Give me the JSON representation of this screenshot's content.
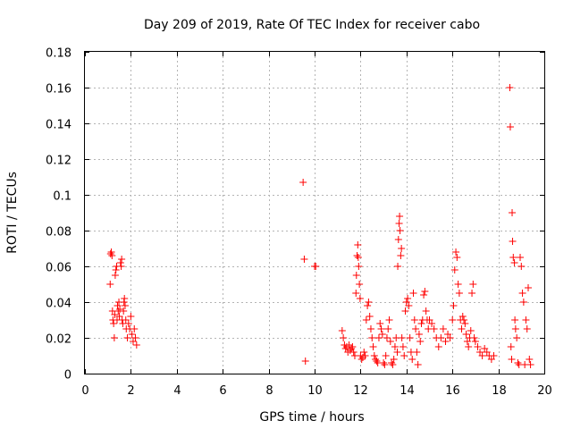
{
  "chart_data": {
    "type": "scatter",
    "title": "Day 209 of 2019, Rate Of TEC Index for receiver cabo",
    "xlabel": "GPS time / hours",
    "ylabel": "ROTI / TECUs",
    "xlim": [
      0,
      20
    ],
    "ylim": [
      0,
      0.18
    ],
    "xticks": [
      0,
      2,
      4,
      6,
      8,
      10,
      12,
      14,
      16,
      18,
      20
    ],
    "yticks": [
      0,
      0.02,
      0.04,
      0.06,
      0.08,
      0.1,
      0.12,
      0.14,
      0.16,
      0.18
    ],
    "xtick_labels": [
      "0",
      "2",
      "4",
      "6",
      "8",
      "10",
      "12",
      "14",
      "16",
      "18",
      "20"
    ],
    "ytick_labels": [
      "0",
      "0.02",
      "0.04",
      "0.06",
      "0.08",
      "0.1",
      "0.12",
      "0.14",
      "0.16",
      "0.18"
    ],
    "grid": true,
    "marker": "+",
    "series": [
      {
        "name": "ROTI",
        "color": "#ff0000",
        "points": [
          [
            1.1,
            0.05
          ],
          [
            1.12,
            0.067
          ],
          [
            1.15,
            0.068
          ],
          [
            1.18,
            0.066
          ],
          [
            1.2,
            0.035
          ],
          [
            1.22,
            0.03
          ],
          [
            1.25,
            0.028
          ],
          [
            1.28,
            0.02
          ],
          [
            1.3,
            0.033
          ],
          [
            1.32,
            0.055
          ],
          [
            1.35,
            0.058
          ],
          [
            1.38,
            0.06
          ],
          [
            1.4,
            0.03
          ],
          [
            1.42,
            0.038
          ],
          [
            1.45,
            0.035
          ],
          [
            1.48,
            0.04
          ],
          [
            1.5,
            0.032
          ],
          [
            1.52,
            0.036
          ],
          [
            1.55,
            0.062
          ],
          [
            1.58,
            0.06
          ],
          [
            1.6,
            0.064
          ],
          [
            1.62,
            0.03
          ],
          [
            1.65,
            0.028
          ],
          [
            1.68,
            0.035
          ],
          [
            1.7,
            0.04
          ],
          [
            1.72,
            0.042
          ],
          [
            1.75,
            0.038
          ],
          [
            1.78,
            0.03
          ],
          [
            1.8,
            0.025
          ],
          [
            1.85,
            0.02
          ],
          [
            1.9,
            0.028
          ],
          [
            1.95,
            0.025
          ],
          [
            2.0,
            0.032
          ],
          [
            2.05,
            0.022
          ],
          [
            2.1,
            0.018
          ],
          [
            2.15,
            0.025
          ],
          [
            2.2,
            0.02
          ],
          [
            2.25,
            0.016
          ],
          [
            9.5,
            0.107
          ],
          [
            9.55,
            0.064
          ],
          [
            9.6,
            0.007
          ],
          [
            10.0,
            0.06
          ],
          [
            10.05,
            0.06
          ],
          [
            11.2,
            0.024
          ],
          [
            11.25,
            0.02
          ],
          [
            11.3,
            0.016
          ],
          [
            11.35,
            0.014
          ],
          [
            11.4,
            0.015
          ],
          [
            11.45,
            0.012
          ],
          [
            11.5,
            0.016
          ],
          [
            11.55,
            0.013
          ],
          [
            11.6,
            0.014
          ],
          [
            11.65,
            0.015
          ],
          [
            11.7,
            0.012
          ],
          [
            11.75,
            0.01
          ],
          [
            11.8,
            0.045
          ],
          [
            11.82,
            0.055
          ],
          [
            11.85,
            0.066
          ],
          [
            11.88,
            0.072
          ],
          [
            11.9,
            0.065
          ],
          [
            11.92,
            0.06
          ],
          [
            11.95,
            0.05
          ],
          [
            11.98,
            0.042
          ],
          [
            12.0,
            0.01
          ],
          [
            12.05,
            0.008
          ],
          [
            12.1,
            0.009
          ],
          [
            12.15,
            0.012
          ],
          [
            12.2,
            0.01
          ],
          [
            12.25,
            0.03
          ],
          [
            12.3,
            0.038
          ],
          [
            12.35,
            0.04
          ],
          [
            12.4,
            0.032
          ],
          [
            12.45,
            0.025
          ],
          [
            12.5,
            0.02
          ],
          [
            12.55,
            0.015
          ],
          [
            12.6,
            0.01
          ],
          [
            12.65,
            0.008
          ],
          [
            12.7,
            0.007
          ],
          [
            12.75,
            0.006
          ],
          [
            12.8,
            0.02
          ],
          [
            12.85,
            0.028
          ],
          [
            12.9,
            0.025
          ],
          [
            12.95,
            0.022
          ],
          [
            13.0,
            0.006
          ],
          [
            13.05,
            0.005
          ],
          [
            13.1,
            0.01
          ],
          [
            13.15,
            0.02
          ],
          [
            13.2,
            0.025
          ],
          [
            13.25,
            0.03
          ],
          [
            13.3,
            0.018
          ],
          [
            13.35,
            0.006
          ],
          [
            13.4,
            0.005
          ],
          [
            13.45,
            0.008
          ],
          [
            13.5,
            0.015
          ],
          [
            13.55,
            0.02
          ],
          [
            13.6,
            0.012
          ],
          [
            13.62,
            0.06
          ],
          [
            13.65,
            0.075
          ],
          [
            13.68,
            0.084
          ],
          [
            13.7,
            0.088
          ],
          [
            13.72,
            0.08
          ],
          [
            13.75,
            0.066
          ],
          [
            13.78,
            0.07
          ],
          [
            13.8,
            0.02
          ],
          [
            13.85,
            0.015
          ],
          [
            13.9,
            0.01
          ],
          [
            13.95,
            0.035
          ],
          [
            14.0,
            0.04
          ],
          [
            14.05,
            0.042
          ],
          [
            14.1,
            0.038
          ],
          [
            14.15,
            0.02
          ],
          [
            14.2,
            0.012
          ],
          [
            14.25,
            0.008
          ],
          [
            14.3,
            0.045
          ],
          [
            14.35,
            0.03
          ],
          [
            14.4,
            0.025
          ],
          [
            14.45,
            0.012
          ],
          [
            14.5,
            0.005
          ],
          [
            14.55,
            0.022
          ],
          [
            14.6,
            0.018
          ],
          [
            14.65,
            0.028
          ],
          [
            14.7,
            0.03
          ],
          [
            14.75,
            0.044
          ],
          [
            14.8,
            0.046
          ],
          [
            14.85,
            0.035
          ],
          [
            14.9,
            0.03
          ],
          [
            14.95,
            0.025
          ],
          [
            15.0,
            0.03
          ],
          [
            15.1,
            0.028
          ],
          [
            15.2,
            0.025
          ],
          [
            15.3,
            0.02
          ],
          [
            15.4,
            0.015
          ],
          [
            15.5,
            0.02
          ],
          [
            15.6,
            0.025
          ],
          [
            15.7,
            0.018
          ],
          [
            15.8,
            0.022
          ],
          [
            15.9,
            0.02
          ],
          [
            16.0,
            0.03
          ],
          [
            16.05,
            0.038
          ],
          [
            16.1,
            0.058
          ],
          [
            16.15,
            0.068
          ],
          [
            16.2,
            0.065
          ],
          [
            16.25,
            0.05
          ],
          [
            16.3,
            0.045
          ],
          [
            16.35,
            0.03
          ],
          [
            16.4,
            0.025
          ],
          [
            16.45,
            0.032
          ],
          [
            16.5,
            0.03
          ],
          [
            16.55,
            0.028
          ],
          [
            16.6,
            0.022
          ],
          [
            16.65,
            0.018
          ],
          [
            16.7,
            0.015
          ],
          [
            16.75,
            0.02
          ],
          [
            16.8,
            0.024
          ],
          [
            16.85,
            0.045
          ],
          [
            16.9,
            0.05
          ],
          [
            16.95,
            0.02
          ],
          [
            17.0,
            0.018
          ],
          [
            17.1,
            0.015
          ],
          [
            17.2,
            0.012
          ],
          [
            17.3,
            0.01
          ],
          [
            17.4,
            0.014
          ],
          [
            17.5,
            0.012
          ],
          [
            17.6,
            0.01
          ],
          [
            17.7,
            0.008
          ],
          [
            17.8,
            0.01
          ],
          [
            18.5,
            0.16
          ],
          [
            18.52,
            0.138
          ],
          [
            18.55,
            0.015
          ],
          [
            18.58,
            0.008
          ],
          [
            18.6,
            0.09
          ],
          [
            18.62,
            0.074
          ],
          [
            18.65,
            0.065
          ],
          [
            18.7,
            0.062
          ],
          [
            18.72,
            0.03
          ],
          [
            18.75,
            0.025
          ],
          [
            18.8,
            0.02
          ],
          [
            18.85,
            0.006
          ],
          [
            18.9,
            0.005
          ],
          [
            18.95,
            0.065
          ],
          [
            19.0,
            0.06
          ],
          [
            19.05,
            0.045
          ],
          [
            19.1,
            0.04
          ],
          [
            19.15,
            0.005
          ],
          [
            19.2,
            0.03
          ],
          [
            19.25,
            0.025
          ],
          [
            19.3,
            0.048
          ],
          [
            19.35,
            0.008
          ],
          [
            19.4,
            0.005
          ]
        ]
      }
    ]
  }
}
